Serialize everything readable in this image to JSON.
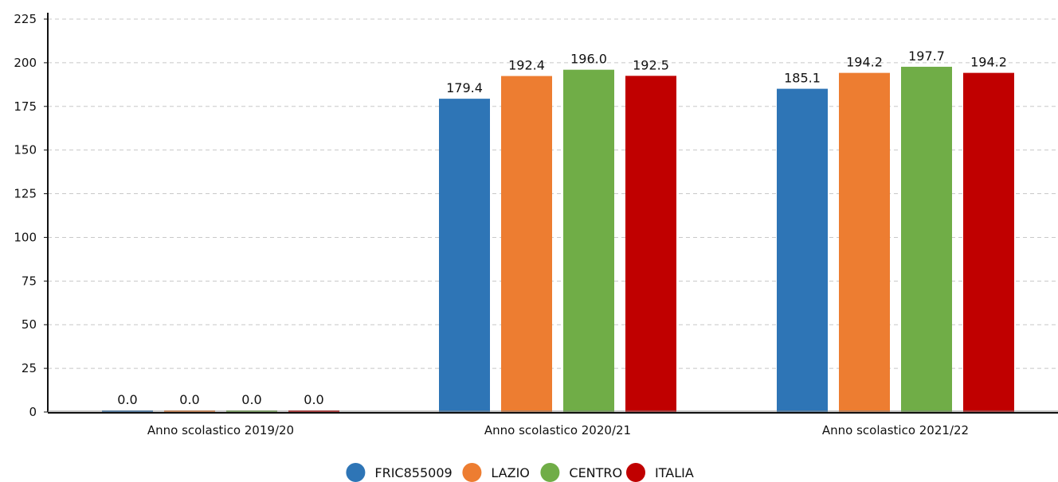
{
  "chart_data": {
    "type": "bar",
    "title": "",
    "xlabel": "",
    "ylabel": "",
    "ylim": [
      0,
      225
    ],
    "yticks": [
      0,
      25,
      50,
      75,
      100,
      125,
      150,
      175,
      200,
      225
    ],
    "grid": true,
    "legend_position": "bottom-center",
    "categories": [
      "Anno scolastico 2019/20",
      "Anno scolastico 2020/21",
      "Anno scolastico 2021/22"
    ],
    "series": [
      {
        "name": "FRIC855009",
        "color": "#2e75b6",
        "values": [
          0.0,
          179.4,
          185.1
        ],
        "labels": [
          "0.0",
          "179.4",
          "185.1"
        ]
      },
      {
        "name": "LAZIO",
        "color": "#ed7d31",
        "values": [
          0.0,
          192.4,
          194.2
        ],
        "labels": [
          "0.0",
          "192.4",
          "194.2"
        ]
      },
      {
        "name": "CENTRO",
        "color": "#70ad47",
        "values": [
          0.0,
          196.0,
          197.7
        ],
        "labels": [
          "0.0",
          "196.0",
          "197.7"
        ]
      },
      {
        "name": "ITALIA",
        "color": "#c00000",
        "values": [
          0.0,
          192.5,
          194.2
        ],
        "labels": [
          "0.0",
          "192.5",
          "194.2"
        ]
      }
    ]
  }
}
